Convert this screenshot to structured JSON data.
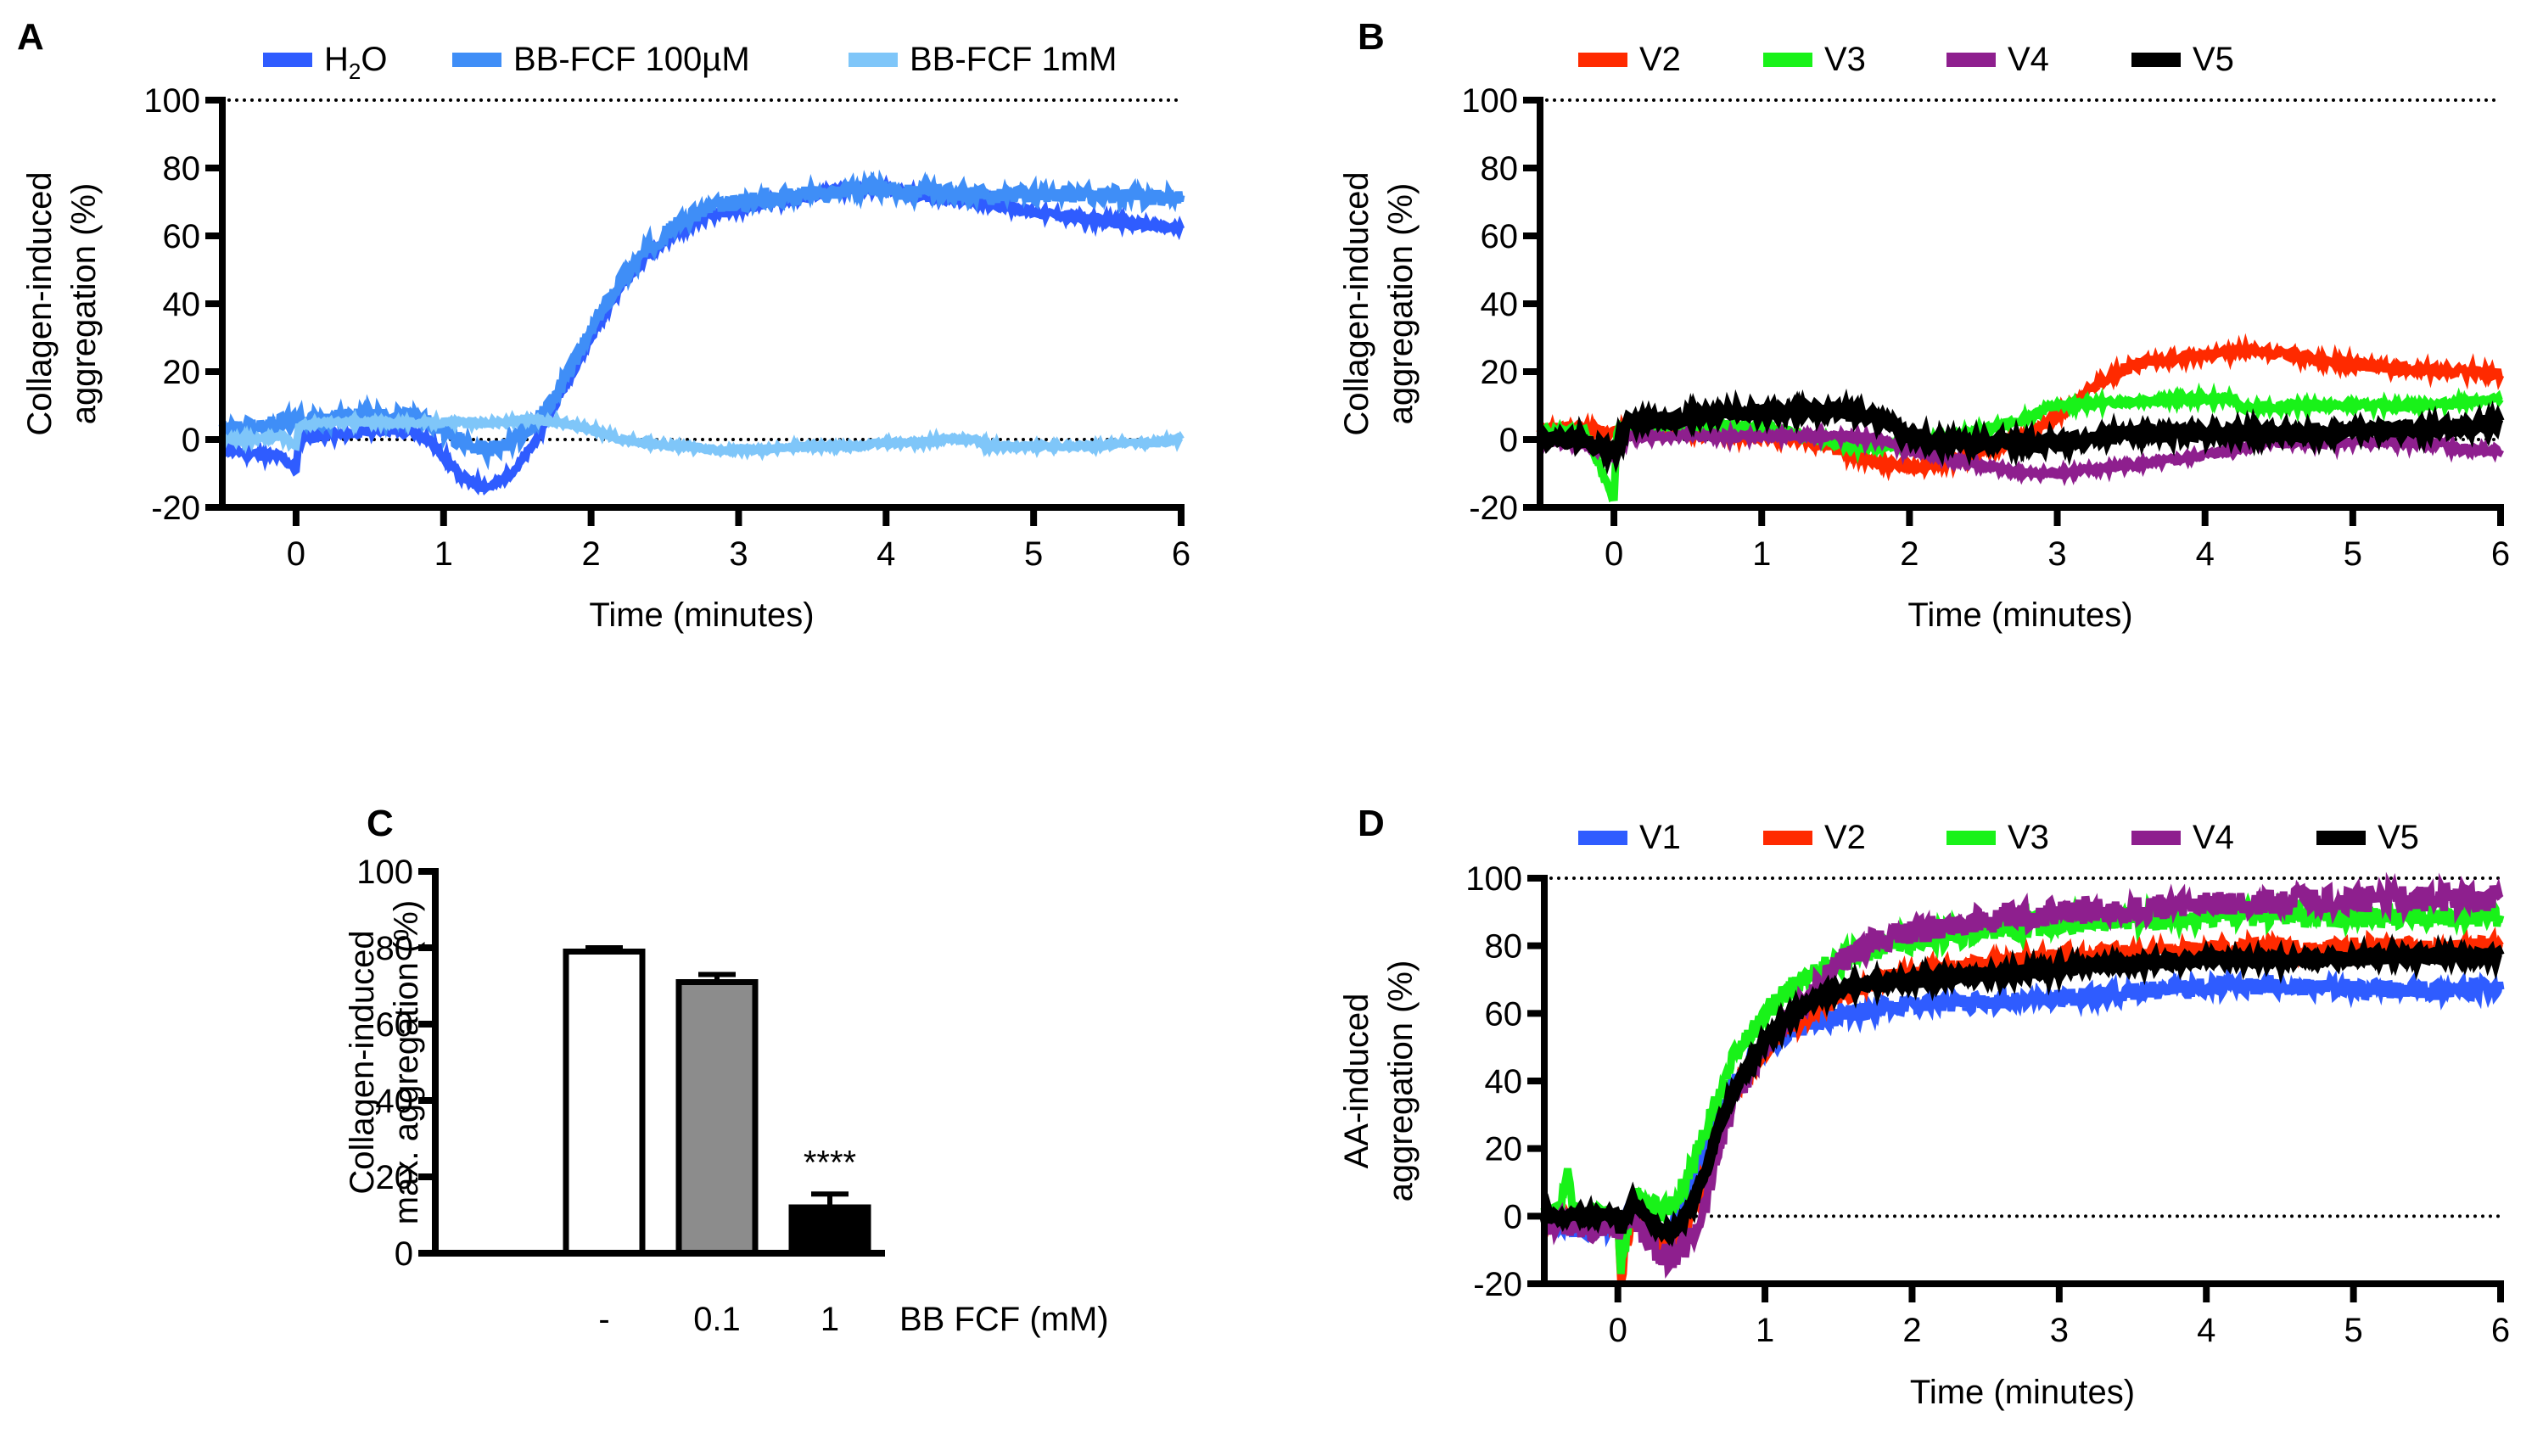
{
  "chart_data": [
    {
      "panel": "A",
      "type": "line",
      "legend": [
        "H2O",
        "BB-FCF 100µM",
        "BB-FCF 1mM"
      ],
      "legend_placement": "top",
      "xlabel": "Time (minutes)",
      "ylabel": [
        "Collagen-induced",
        "aggregation (%)"
      ],
      "xlim": [
        -0.5,
        6
      ],
      "ylim": [
        -20,
        100
      ],
      "xticks": [
        0,
        1,
        2,
        3,
        4,
        5,
        6
      ],
      "yticks": [
        -20,
        0,
        20,
        40,
        60,
        80,
        100
      ],
      "reference_lines": [
        0,
        100
      ],
      "series": [
        {
          "name": "H2O",
          "label_main": "H",
          "label_sub": "2",
          "label_tail": "O",
          "color": "#2f5cff",
          "x": [
            -0.5,
            -0.3,
            -0.1,
            0,
            0.02,
            0.2,
            0.4,
            0.6,
            0.8,
            0.9,
            1.0,
            1.1,
            1.2,
            1.3,
            1.4,
            1.5,
            1.6,
            1.7,
            1.8,
            1.9,
            2.0,
            2.1,
            2.2,
            2.4,
            2.6,
            2.8,
            3.0,
            3.2,
            3.4,
            3.6,
            3.8,
            4.0,
            4.2,
            4.4,
            4.6,
            4.8,
            5.0,
            5.2,
            5.4,
            5.6,
            5.8,
            6.0
          ],
          "y": [
            -3,
            -4,
            -5,
            -9,
            1,
            1,
            2,
            3,
            2,
            0,
            -5,
            -10,
            -13,
            -14,
            -12,
            -8,
            -2,
            6,
            14,
            22,
            30,
            38,
            45,
            55,
            62,
            66,
            68,
            70,
            71,
            73,
            74,
            74,
            72,
            71,
            70,
            69,
            67,
            66,
            65,
            64,
            63,
            62
          ]
        },
        {
          "name": "BB-FCF 100µM",
          "color": "#3f8ef7",
          "x": [
            -0.5,
            -0.3,
            -0.1,
            0,
            0.02,
            0.2,
            0.4,
            0.6,
            0.8,
            0.9,
            1.0,
            1.1,
            1.2,
            1.3,
            1.4,
            1.5,
            1.6,
            1.7,
            1.8,
            1.9,
            2.0,
            2.1,
            2.2,
            2.4,
            2.6,
            2.8,
            3.0,
            3.2,
            3.4,
            3.6,
            3.8,
            4.0,
            4.2,
            4.4,
            4.6,
            4.8,
            5.0,
            5.2,
            5.4,
            5.6,
            5.8,
            6.0
          ],
          "y": [
            3,
            4,
            5,
            5,
            6,
            6,
            7,
            7,
            6,
            5,
            3,
            0,
            -2,
            -3,
            -2,
            0,
            4,
            9,
            16,
            24,
            32,
            40,
            47,
            57,
            64,
            68,
            70,
            71,
            72,
            73,
            74,
            74,
            73,
            73,
            72,
            72,
            72,
            72,
            72,
            72,
            71,
            72
          ]
        },
        {
          "name": "BB-FCF 1mM",
          "color": "#7fc6f9",
          "x": [
            -0.5,
            -0.3,
            -0.1,
            0,
            0.02,
            0.2,
            0.4,
            0.6,
            0.8,
            1.0,
            1.2,
            1.4,
            1.6,
            1.8,
            2.0,
            2.2,
            2.4,
            2.6,
            2.8,
            3.0,
            3.2,
            3.4,
            3.6,
            3.8,
            4.0,
            4.2,
            4.4,
            4.6,
            4.7,
            4.8,
            5.0,
            5.2,
            5.4,
            5.6,
            5.8,
            6.0
          ],
          "y": [
            0,
            0,
            1,
            -2,
            4,
            5,
            5,
            5,
            5,
            5,
            5,
            5,
            6,
            5,
            3,
            0,
            -1,
            -2,
            -3,
            -3,
            -3,
            -2,
            -2,
            -2,
            -1,
            -1,
            0,
            0,
            -2,
            -2,
            -2,
            -2,
            -2,
            -1,
            -1,
            0
          ]
        }
      ]
    },
    {
      "panel": "B",
      "type": "line",
      "legend": [
        "V2",
        "V3",
        "V4",
        "V5"
      ],
      "legend_placement": "top",
      "xlabel": "Time (minutes)",
      "ylabel": [
        "Collagen-induced",
        "aggregation (%)"
      ],
      "xlim": [
        -0.5,
        6
      ],
      "ylim": [
        -20,
        100
      ],
      "xticks": [
        0,
        1,
        2,
        3,
        4,
        5,
        6
      ],
      "yticks": [
        -20,
        0,
        20,
        40,
        60,
        80,
        100
      ],
      "reference_lines": [
        0,
        100
      ],
      "series": [
        {
          "name": "V2",
          "color": "#ff2a00",
          "x": [
            -0.5,
            -0.2,
            0,
            0.1,
            0.5,
            1.0,
            1.3,
            1.6,
            1.8,
            2.0,
            2.2,
            2.4,
            2.6,
            2.8,
            3.0,
            3.2,
            3.4,
            3.6,
            3.8,
            4.0,
            4.2,
            4.4,
            4.6,
            4.8,
            5.0,
            5.2,
            5.4,
            5.6,
            5.8,
            6.0
          ],
          "y": [
            3,
            3,
            2,
            2,
            2,
            1,
            0,
            -4,
            -7,
            -8,
            -7,
            -5,
            -2,
            1,
            7,
            14,
            20,
            23,
            24,
            25,
            26,
            26,
            25,
            23,
            22,
            21,
            21,
            20,
            20,
            19
          ]
        },
        {
          "name": "V3",
          "color": "#19f219",
          "x": [
            -0.5,
            -0.2,
            0,
            0.02,
            0.1,
            0.5,
            1.0,
            1.3,
            1.6,
            1.8,
            2.0,
            2.2,
            2.4,
            2.6,
            2.8,
            2.9,
            3.0,
            3.4,
            3.8,
            4.2,
            4.25,
            4.6,
            5.0,
            5.4,
            5.8,
            6.0
          ],
          "y": [
            2,
            3,
            -18,
            2,
            4,
            4,
            4,
            1,
            -2,
            -2,
            -1,
            0,
            2,
            4,
            6,
            9,
            10,
            11,
            12,
            12,
            9,
            10,
            10,
            10,
            11,
            12
          ]
        },
        {
          "name": "V4",
          "color": "#8e1f8e",
          "x": [
            -0.5,
            -0.2,
            0,
            0.1,
            0.5,
            1.0,
            1.5,
            1.8,
            2.0,
            2.4,
            2.8,
            3.0,
            3.4,
            3.8,
            4.2,
            4.4,
            4.8,
            5.2,
            5.6,
            5.7,
            6.0
          ],
          "y": [
            0,
            -2,
            -5,
            1,
            1,
            1,
            1,
            0,
            -3,
            -7,
            -10,
            -10,
            -8,
            -6,
            -3,
            -1,
            -1,
            -1,
            -1,
            -3,
            -3
          ]
        },
        {
          "name": "V5",
          "color": "#000000",
          "x": [
            -0.5,
            -0.2,
            0,
            0.1,
            0.4,
            0.8,
            1.2,
            1.5,
            1.8,
            2.0,
            2.2,
            2.6,
            3.0,
            3.3,
            3.6,
            4.0,
            4.4,
            4.8,
            5.2,
            5.6,
            6.0
          ],
          "y": [
            0,
            0,
            -4,
            5,
            6,
            8,
            8,
            9,
            6,
            1,
            -1,
            -1,
            -1,
            1,
            2,
            2,
            2,
            2,
            3,
            3,
            5
          ]
        }
      ]
    },
    {
      "panel": "C",
      "type": "bar",
      "categories": [
        "-",
        "0.1",
        "1"
      ],
      "values": [
        79,
        71,
        12
      ],
      "errors": [
        1,
        2,
        3.5
      ],
      "bar_colors": [
        "#ffffff",
        "#8c8c8c",
        "#000000"
      ],
      "annotations": [
        {
          "category": "1",
          "text": "****"
        }
      ],
      "xlabel": "BB FCF (mM)",
      "ylabel": [
        "Collagen-induced",
        "max. aggregation (%)"
      ],
      "ylim": [
        0,
        100
      ],
      "yticks": [
        0,
        20,
        40,
        60,
        80,
        100
      ]
    },
    {
      "panel": "D",
      "type": "line",
      "legend": [
        "V1",
        "V2",
        "V3",
        "V4",
        "V5"
      ],
      "legend_placement": "top",
      "xlabel": "Time (minutes)",
      "ylabel": [
        "AA-induced",
        "aggregation (%)"
      ],
      "xlim": [
        -0.5,
        6
      ],
      "ylim": [
        -20,
        100
      ],
      "xticks": [
        0,
        1,
        2,
        3,
        4,
        5,
        6
      ],
      "yticks": [
        -20,
        0,
        20,
        40,
        60,
        80,
        100
      ],
      "reference_lines": [
        0,
        100
      ],
      "series": [
        {
          "name": "V1",
          "color": "#2f5cff",
          "x": [
            -0.5,
            -0.2,
            0,
            0.1,
            0.2,
            0.3,
            0.4,
            0.5,
            0.6,
            0.7,
            0.8,
            1.0,
            1.2,
            1.4,
            1.6,
            1.8,
            2.0,
            2.4,
            2.8,
            3.2,
            3.6,
            4.0,
            4.4,
            4.8,
            5.2,
            5.6,
            6.0
          ],
          "y": [
            -3,
            -4,
            -3,
            2,
            -5,
            -7,
            0,
            10,
            22,
            32,
            40,
            50,
            55,
            58,
            60,
            62,
            63,
            63,
            64,
            65,
            67,
            68,
            68,
            68,
            67,
            67,
            67
          ]
        },
        {
          "name": "V2",
          "color": "#ff2a00",
          "x": [
            -0.5,
            -0.2,
            0,
            0.02,
            0.1,
            0.2,
            0.3,
            0.4,
            0.5,
            0.6,
            0.7,
            0.8,
            1.0,
            1.2,
            1.4,
            1.6,
            1.8,
            2.0,
            2.4,
            2.8,
            3.2,
            3.6,
            4.0,
            4.4,
            4.8,
            5.2,
            5.6,
            6.0
          ],
          "y": [
            -1,
            -1,
            -1,
            -19,
            1,
            -4,
            -8,
            -8,
            0,
            12,
            26,
            38,
            50,
            57,
            62,
            67,
            70,
            72,
            74,
            76,
            77,
            78,
            79,
            79,
            79,
            80,
            79,
            80
          ]
        },
        {
          "name": "V3",
          "color": "#19f219",
          "x": [
            -0.5,
            -0.4,
            -0.35,
            -0.3,
            -0.2,
            0,
            0.02,
            0.1,
            0.2,
            0.3,
            0.4,
            0.5,
            0.6,
            0.7,
            0.8,
            1.0,
            1.2,
            1.4,
            1.6,
            1.8,
            2.0,
            2.4,
            2.8,
            3.2,
            3.6,
            4.0,
            4.4,
            4.8,
            5.2,
            5.6,
            6.0
          ],
          "y": [
            0,
            0,
            14,
            1,
            0,
            -1,
            -18,
            6,
            4,
            0,
            5,
            14,
            26,
            38,
            48,
            60,
            68,
            73,
            77,
            80,
            82,
            84,
            86,
            88,
            88,
            89,
            89,
            89,
            89,
            89,
            89
          ]
        },
        {
          "name": "V4",
          "color": "#8e1f8e",
          "x": [
            -0.5,
            -0.2,
            0,
            0.1,
            0.2,
            0.3,
            0.4,
            0.5,
            0.6,
            0.7,
            0.8,
            1.0,
            1.2,
            1.4,
            1.6,
            1.8,
            2.0,
            2.4,
            2.8,
            3.2,
            3.6,
            4.0,
            4.4,
            4.8,
            5.2,
            5.6,
            6.0
          ],
          "y": [
            -2,
            -3,
            -4,
            0,
            -7,
            -12,
            -12,
            -7,
            4,
            22,
            36,
            50,
            60,
            70,
            78,
            82,
            84,
            87,
            89,
            90,
            91,
            92,
            93,
            93,
            94,
            94,
            94
          ]
        },
        {
          "name": "V5",
          "color": "#000000",
          "x": [
            -0.5,
            -0.2,
            0,
            0.02,
            0.1,
            0.2,
            0.3,
            0.4,
            0.5,
            0.6,
            0.7,
            0.8,
            1.0,
            1.2,
            1.4,
            1.6,
            1.8,
            2.0,
            2.4,
            2.8,
            3.2,
            3.6,
            4.0,
            4.4,
            4.8,
            5.2,
            5.6,
            6.0
          ],
          "y": [
            0,
            0,
            0,
            -4,
            4,
            0,
            -5,
            -4,
            3,
            14,
            28,
            38,
            52,
            60,
            66,
            68,
            69,
            70,
            71,
            72,
            74,
            75,
            76,
            76,
            76,
            77,
            77,
            77
          ]
        }
      ]
    }
  ],
  "panels": {
    "A": {
      "letter": "A"
    },
    "B": {
      "letter": "B"
    },
    "C": {
      "letter": "C"
    },
    "D": {
      "letter": "D"
    }
  }
}
